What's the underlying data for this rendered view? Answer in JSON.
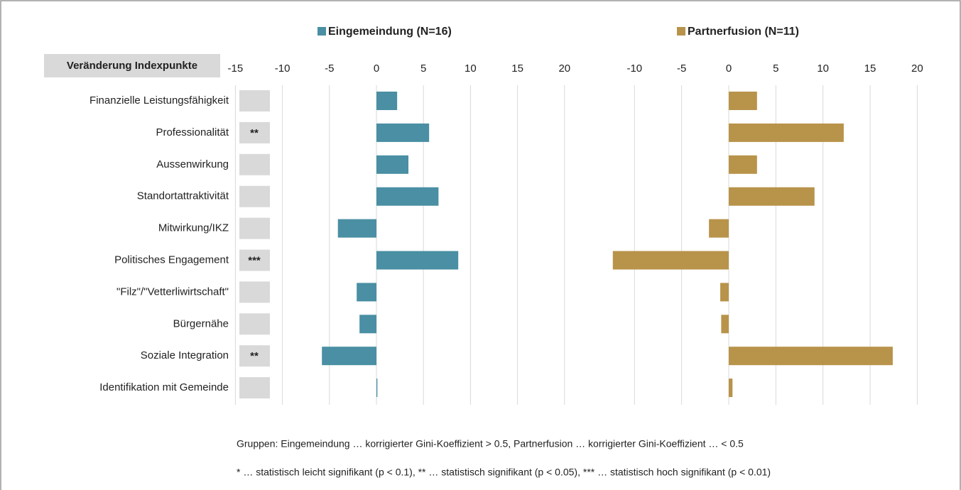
{
  "chart_data": {
    "type": "bar",
    "orientation": "horizontal",
    "axis_label": "Veränderung Indexpunkte",
    "categories": [
      "Finanzielle Leistungsfähigkeit",
      "Professionalität",
      "Aussenwirkung",
      "Standortattraktivität",
      "Mitwirkung/IKZ",
      "Politisches Engagement",
      "\"Filz\"/\"Vetterliwirtschaft\"",
      "Bürgernähe",
      "Soziale Integration",
      "Identifikation mit Gemeinde"
    ],
    "significance": [
      null,
      "**",
      null,
      null,
      null,
      "***",
      null,
      null,
      "**",
      null
    ],
    "grid": true,
    "series": [
      {
        "name": "Eingemeindung (N=16)",
        "color": "#4a8fa3",
        "values": [
          2.2,
          5.6,
          3.4,
          6.6,
          -4.1,
          8.7,
          -2.1,
          -1.8,
          -5.8,
          0.1
        ],
        "xlim": [
          -15,
          20
        ],
        "xticks": [
          -15,
          -10,
          -5,
          0,
          5,
          10,
          15,
          20
        ]
      },
      {
        "name": "Partnerfusion (N=11)",
        "color": "#b8934a",
        "values": [
          3.0,
          12.2,
          3.0,
          9.1,
          -2.1,
          -12.3,
          -0.9,
          -0.8,
          17.4,
          0.4
        ],
        "xlim": [
          -10,
          20
        ],
        "xticks": [
          -10,
          -5,
          0,
          5,
          10,
          15,
          20
        ]
      }
    ],
    "notes": [
      "Gruppen: Eingemeindung … korrigierter Gini-Koeffizient > 0.5, Partnerfusion … korrigierter Gini-Koeffizient … < 0.5",
      "* … statistisch leicht signifikant (p < 0.1), ** … statistisch signifikant (p < 0.05), *** … statistisch hoch signifikant (p < 0.01)"
    ]
  }
}
